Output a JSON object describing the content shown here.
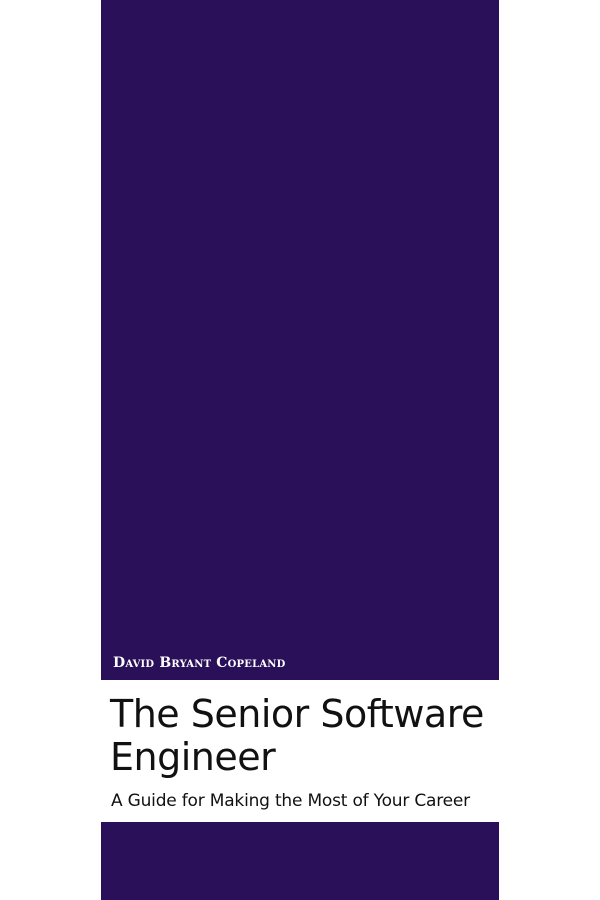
{
  "cover": {
    "author": "David Bryant Copeland",
    "title": "The Senior Software Engineer",
    "subtitle": "A Guide for Making the Most of Your Career",
    "colors": {
      "band": "#2a0f59",
      "background": "#ffffff",
      "text": "#111111",
      "author_text": "#ffffff"
    }
  }
}
